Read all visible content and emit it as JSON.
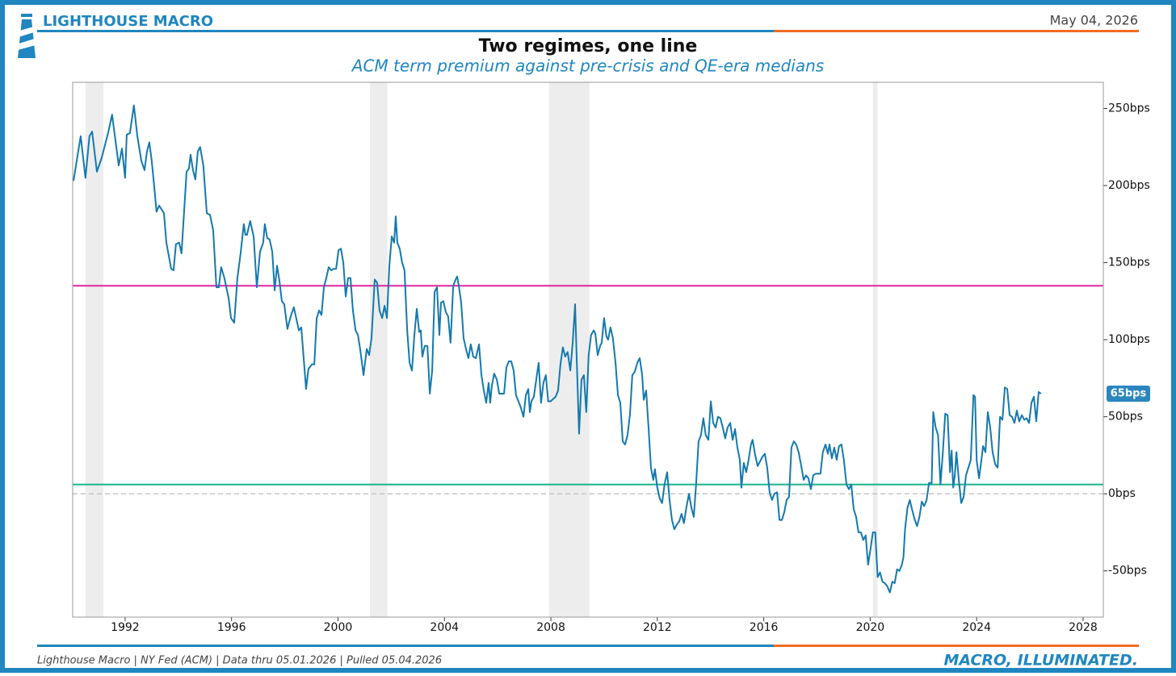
{
  "header": {
    "brand": "LIGHTHOUSE MACRO",
    "date": "May 04, 2026"
  },
  "footer": {
    "source": "Lighthouse Macro | NY Fed (ACM) | Data thru 05.01.2026 | Pulled 05.04.2026",
    "tagline": "MACRO, ILLUMINATED."
  },
  "chart_data": {
    "type": "line",
    "title": "Two regimes, one line",
    "subtitle": "ACM term premium against pre-crisis and QE-era medians",
    "xlim": [
      1990.03,
      2028.76
    ],
    "xticks": [
      1992,
      1996,
      2000,
      2004,
      2008,
      2012,
      2016,
      2020,
      2024,
      2028
    ],
    "ylim": [
      -80,
      267
    ],
    "yticks": [
      {
        "value": -50,
        "label": "-50bps"
      },
      {
        "value": 0,
        "label": "0bps"
      },
      {
        "value": 50,
        "label": "50bps"
      },
      {
        "value": 100,
        "label": "100bps"
      },
      {
        "value": 150,
        "label": "150bps"
      },
      {
        "value": 200,
        "label": "200bps"
      },
      {
        "value": 250,
        "label": "250bps"
      }
    ],
    "y_axis_side": "right",
    "zero_line": true,
    "shaded_regions": [
      {
        "start": 1990.51,
        "end": 1991.18
      },
      {
        "start": 2001.2,
        "end": 2001.86
      },
      {
        "start": 2007.93,
        "end": 2009.45
      },
      {
        "start": 2020.1,
        "end": 2020.28
      }
    ],
    "shade_color": "#e6e6e6",
    "reference_lines": [
      {
        "value": 135,
        "color": "#e0259b"
      },
      {
        "value": 6,
        "color": "#19b38a"
      }
    ],
    "series": [
      {
        "color": "#1479ad",
        "x": [
          1990.06,
          1990.33,
          1990.51,
          1990.66,
          1990.76,
          1990.94,
          1991.12,
          1991.36,
          1991.51,
          1991.76,
          1991.88,
          1992.0,
          1992.06,
          1992.18,
          1992.33,
          1992.46,
          1992.61,
          1992.73,
          1992.82,
          1992.91,
          1993.0,
          1993.09,
          1993.18,
          1993.28,
          1993.46,
          1993.55,
          1993.73,
          1993.82,
          1993.91,
          1994.03,
          1994.12,
          1994.22,
          1994.31,
          1994.4,
          1994.46,
          1994.55,
          1994.64,
          1994.73,
          1994.82,
          1994.94,
          1995.07,
          1995.19,
          1995.31,
          1995.43,
          1995.52,
          1995.61,
          1995.73,
          1995.89,
          1995.98,
          1996.1,
          1996.22,
          1996.34,
          1996.46,
          1996.52,
          1996.58,
          1996.7,
          1996.83,
          1996.95,
          1997.07,
          1997.19,
          1997.25,
          1997.34,
          1997.43,
          1997.53,
          1997.62,
          1997.71,
          1997.8,
          1997.89,
          1997.98,
          1998.1,
          1998.22,
          1998.34,
          1998.43,
          1998.53,
          1998.62,
          1998.71,
          1998.8,
          1998.89,
          1999.02,
          1999.11,
          1999.2,
          1999.29,
          1999.38,
          1999.47,
          1999.56,
          1999.65,
          1999.75,
          1999.84,
          1999.93,
          2000.02,
          2000.11,
          2000.2,
          2000.29,
          2000.38,
          2000.47,
          2000.56,
          2000.66,
          2000.75,
          2000.84,
          2000.96,
          2001.08,
          2001.17,
          2001.26,
          2001.38,
          2001.47,
          2001.56,
          2001.66,
          2001.75,
          2001.84,
          2001.93,
          2002.02,
          2002.11,
          2002.17,
          2002.23,
          2002.32,
          2002.41,
          2002.5,
          2002.6,
          2002.69,
          2002.78,
          2002.87,
          2002.96,
          2003.05,
          2003.11,
          2003.17,
          2003.26,
          2003.36,
          2003.45,
          2003.54,
          2003.63,
          2003.72,
          2003.81,
          2003.87,
          2003.96,
          2004.05,
          2004.14,
          2004.23,
          2004.33,
          2004.42,
          2004.48,
          2004.54,
          2004.63,
          2004.72,
          2004.81,
          2004.9,
          2004.99,
          2005.08,
          2005.18,
          2005.3,
          2005.39,
          2005.48,
          2005.57,
          2005.66,
          2005.72,
          2005.78,
          2005.87,
          2005.97,
          2006.06,
          2006.24,
          2006.33,
          2006.42,
          2006.51,
          2006.6,
          2006.69,
          2006.87,
          2006.97,
          2007.06,
          2007.15,
          2007.21,
          2007.27,
          2007.36,
          2007.45,
          2007.54,
          2007.63,
          2007.72,
          2007.81,
          2007.9,
          2007.99,
          2008.18,
          2008.27,
          2008.36,
          2008.45,
          2008.54,
          2008.63,
          2008.73,
          2008.82,
          2008.91,
          2008.97,
          2009.06,
          2009.15,
          2009.24,
          2009.33,
          2009.42,
          2009.51,
          2009.61,
          2009.67,
          2009.76,
          2009.85,
          2009.91,
          2010.0,
          2010.09,
          2010.15,
          2010.24,
          2010.33,
          2010.43,
          2010.52,
          2010.61,
          2010.7,
          2010.79,
          2010.88,
          2010.97,
          2011.06,
          2011.15,
          2011.25,
          2011.34,
          2011.43,
          2011.49,
          2011.58,
          2011.67,
          2011.76,
          2011.85,
          2011.91,
          2012.0,
          2012.09,
          2012.18,
          2012.27,
          2012.37,
          2012.46,
          2012.55,
          2012.64,
          2012.73,
          2012.82,
          2012.91,
          2013.0,
          2013.09,
          2013.19,
          2013.28,
          2013.37,
          2013.46,
          2013.55,
          2013.64,
          2013.73,
          2013.82,
          2013.92,
          2014.01,
          2014.1,
          2014.19,
          2014.28,
          2014.37,
          2014.46,
          2014.55,
          2014.64,
          2014.74,
          2014.83,
          2014.92,
          2015.01,
          2015.1,
          2015.16,
          2015.25,
          2015.34,
          2015.43,
          2015.52,
          2015.58,
          2015.68,
          2015.77,
          2015.86,
          2015.95,
          2016.04,
          2016.13,
          2016.22,
          2016.31,
          2016.4,
          2016.5,
          2016.59,
          2016.68,
          2016.77,
          2016.86,
          2016.95,
          2017.04,
          2017.13,
          2017.22,
          2017.31,
          2017.41,
          2017.5,
          2017.59,
          2017.68,
          2017.77,
          2017.86,
          2017.95,
          2018.13,
          2018.22,
          2018.32,
          2018.41,
          2018.47,
          2018.56,
          2018.65,
          2018.74,
          2018.83,
          2018.92,
          2019.01,
          2019.11,
          2019.2,
          2019.29,
          2019.38,
          2019.47,
          2019.56,
          2019.65,
          2019.74,
          2019.83,
          2019.92,
          2020.01,
          2020.1,
          2020.19,
          2020.28,
          2020.37,
          2020.46,
          2020.55,
          2020.64,
          2020.74,
          2020.83,
          2020.92,
          2021.01,
          2021.1,
          2021.19,
          2021.25,
          2021.31,
          2021.4,
          2021.49,
          2021.57,
          2021.66,
          2021.76,
          2021.85,
          2021.94,
          2022.03,
          2022.12,
          2022.21,
          2022.31,
          2022.37,
          2022.46,
          2022.55,
          2022.64,
          2022.73,
          2022.82,
          2022.91,
          2023.0,
          2023.06,
          2023.12,
          2023.18,
          2023.24,
          2023.33,
          2023.42,
          2023.51,
          2023.6,
          2023.69,
          2023.78,
          2023.88,
          2023.94,
          2024.0,
          2024.09,
          2024.18,
          2024.24,
          2024.33,
          2024.42,
          2024.51,
          2024.6,
          2024.7,
          2024.79,
          2024.88,
          2024.97,
          2025.06,
          2025.15,
          2025.24,
          2025.33,
          2025.42,
          2025.51,
          2025.6,
          2025.7,
          2025.79,
          2025.88,
          2025.97,
          2026.06,
          2026.15,
          2026.24,
          2026.33,
          2026.42
        ],
        "values": [
          203,
          232,
          205,
          232,
          235,
          209,
          218,
          234,
          246,
          213,
          224,
          205,
          233,
          234,
          252,
          232,
          216,
          210,
          222,
          228,
          216,
          200,
          183,
          187,
          182,
          163,
          146,
          145,
          162,
          163,
          156,
          184,
          209,
          211,
          220,
          210,
          204,
          222,
          225,
          213,
          182,
          181,
          171,
          134,
          134,
          147,
          140,
          127,
          114,
          111,
          140,
          156,
          175,
          168,
          168,
          177,
          167,
          134,
          157,
          163,
          175,
          166,
          165,
          157,
          132,
          148,
          138,
          125,
          123,
          107,
          115,
          121,
          114,
          106,
          108,
          88,
          68,
          81,
          84,
          84,
          114,
          119,
          116,
          134,
          140,
          147,
          145,
          146,
          146,
          158,
          159,
          150,
          128,
          140,
          140,
          119,
          106,
          103,
          93,
          77,
          94,
          90,
          101,
          139,
          137,
          119,
          114,
          122,
          114,
          148,
          167,
          163,
          180,
          163,
          159,
          150,
          145,
          106,
          85,
          80,
          103,
          120,
          105,
          106,
          89,
          96,
          96,
          65,
          80,
          131,
          134,
          103,
          124,
          125,
          118,
          115,
          98,
          135,
          139,
          141,
          135,
          124,
          101,
          94,
          88,
          97,
          89,
          88,
          97,
          77,
          67,
          59,
          72,
          59,
          70,
          78,
          74,
          65,
          65,
          82,
          86,
          86,
          80,
          64,
          56,
          50,
          64,
          68,
          53,
          60,
          63,
          74,
          85,
          59,
          72,
          77,
          60,
          60,
          63,
          67,
          84,
          95,
          89,
          92,
          80,
          98,
          123,
          88,
          39,
          74,
          77,
          53,
          90,
          103,
          106,
          104,
          90,
          96,
          98,
          114,
          102,
          100,
          108,
          101,
          85,
          64,
          59,
          34,
          32,
          38,
          51,
          77,
          79,
          85,
          88,
          77,
          61,
          67,
          43,
          17,
          9,
          16,
          4,
          -3,
          -6,
          6,
          14,
          -4,
          -17,
          -23,
          -20,
          -18,
          -13,
          -19,
          -9,
          0,
          -9,
          -15,
          7,
          34,
          38,
          49,
          38,
          35,
          60,
          46,
          43,
          50,
          49,
          43,
          36,
          43,
          46,
          35,
          42,
          30,
          22,
          4,
          20,
          14,
          22,
          32,
          35,
          25,
          18,
          21,
          24,
          26,
          17,
          1,
          -4,
          0,
          1,
          -17,
          -17,
          -12,
          -4,
          -2,
          30,
          34,
          32,
          27,
          18,
          9,
          12,
          10,
          3,
          12,
          13,
          13,
          27,
          32,
          26,
          32,
          23,
          30,
          22,
          31,
          32,
          22,
          6,
          3,
          6,
          -10,
          -15,
          -25,
          -25,
          -30,
          -27,
          -46,
          -36,
          -25,
          -25,
          -54,
          -51,
          -57,
          -58,
          -60,
          -64,
          -57,
          -58,
          -49,
          -50,
          -46,
          -41,
          -23,
          -9,
          -4,
          -10,
          -16,
          -21,
          -15,
          -5,
          -8,
          -4,
          7,
          7,
          53,
          43,
          38,
          6,
          27,
          52,
          51,
          14,
          28,
          4,
          12,
          27,
          9,
          -6,
          -2,
          12,
          17,
          22,
          64,
          63,
          22,
          10,
          22,
          31,
          27,
          53,
          43,
          27,
          19,
          17,
          50,
          48,
          69,
          68,
          51,
          50,
          46,
          54,
          47,
          51,
          48,
          49,
          46,
          59,
          63,
          47,
          66,
          65
        ],
        "value_labels": {
          "384": "65bps"
        }
      }
    ]
  }
}
